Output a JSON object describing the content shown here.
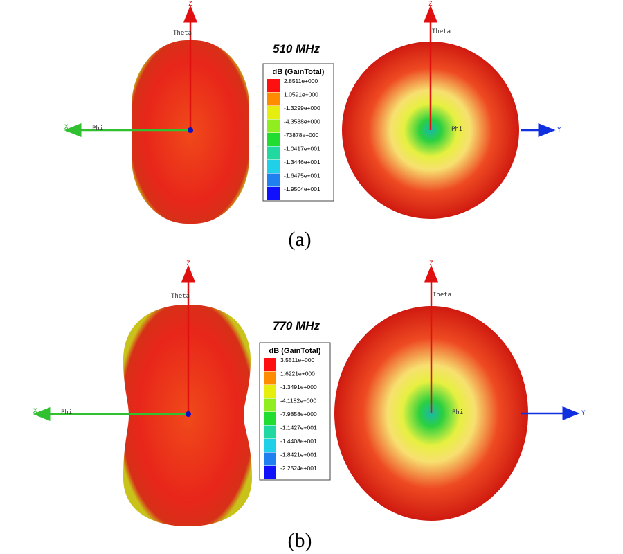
{
  "axis_labels": {
    "z": "Z",
    "theta": "Theta",
    "x": "X",
    "phi": "Phi",
    "y": "Y"
  },
  "panels": [
    {
      "frequency": "510 MHz",
      "legend_title": "dB (GainTotal)",
      "legend_labels": [
        "2.8511e+000",
        "1.0591e+000",
        "-1.3299e+000",
        "-4.3588e+000",
        "-73878e+000",
        "-1.0417e+001",
        "-1.3446e+001",
        "-1.6475e+001",
        "-1.9504e+001"
      ],
      "caption": "(a)"
    },
    {
      "frequency": "770 MHz",
      "legend_title": "dB (GainTotal)",
      "legend_labels": [
        "3.5511e+000",
        "1.6221e+000",
        "-1.3491e+000",
        "-4.1182e+000",
        "-7.9858e+000",
        "-1.1427e+001",
        "-1.4408e+001",
        "-1.8421e+001",
        "-2.2524e+001"
      ],
      "caption": "(b)"
    }
  ]
}
